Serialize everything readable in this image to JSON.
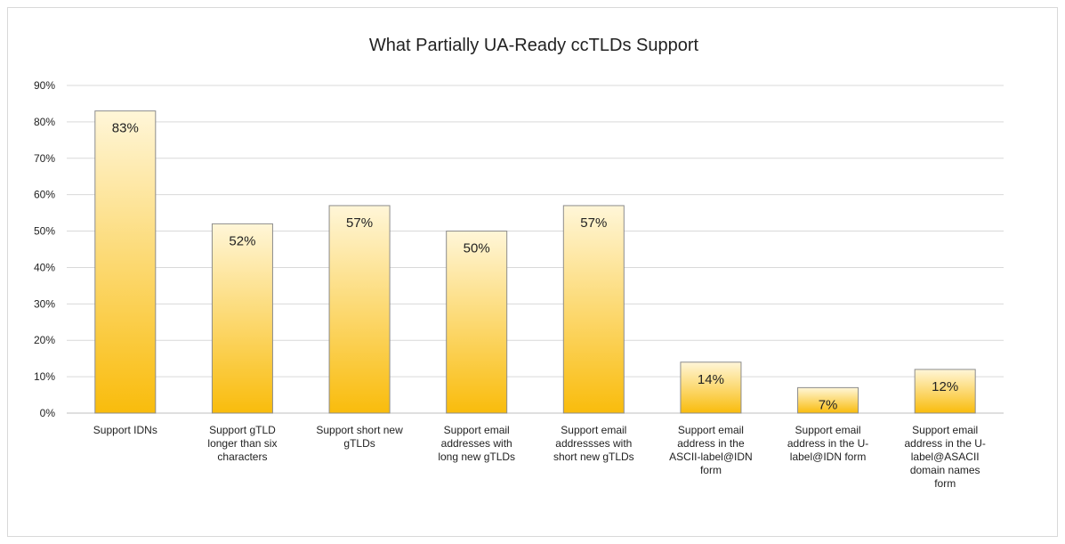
{
  "chart_data": {
    "type": "bar",
    "title": "What Partially UA-Ready ccTLDs Support",
    "xlabel": "",
    "ylabel": "",
    "ylim": [
      0,
      90
    ],
    "ytick_step": 10,
    "ytick_format": "percent",
    "grid": true,
    "legend": "none",
    "categories": [
      "Support IDNs",
      "Support gTLD longer than six characters",
      "Support short new gTLDs",
      "Support email addresses with long new gTLDs",
      "Support email addressses with short new gTLDs",
      "Support email address in the ASCII-label@IDN form",
      "Support email address in the U-label@IDN form",
      "Support email address in the U-label@ASACII domain names form"
    ],
    "category_lines": [
      [
        "Support IDNs"
      ],
      [
        "Support gTLD",
        "longer than six",
        "characters"
      ],
      [
        "Support short new",
        "gTLDs"
      ],
      [
        "Support email",
        "addresses with",
        "long new gTLDs"
      ],
      [
        "Support email",
        "addressses with",
        "short new gTLDs"
      ],
      [
        "Support email",
        "address in the",
        "ASCII-label@IDN",
        "form"
      ],
      [
        "Support email",
        "address in the U-",
        "label@IDN form"
      ],
      [
        "Support email",
        "address in the U-",
        "label@ASACII",
        "domain names",
        "form"
      ]
    ],
    "values": [
      83,
      52,
      57,
      50,
      57,
      14,
      7,
      12
    ],
    "data_labels": [
      "83%",
      "52%",
      "57%",
      "50%",
      "57%",
      "14%",
      "7%",
      "12%"
    ],
    "colors": {
      "bar_top": "#fff6d8",
      "bar_bottom": "#f9bc0c",
      "bar_border": "#8c8c8c"
    }
  }
}
